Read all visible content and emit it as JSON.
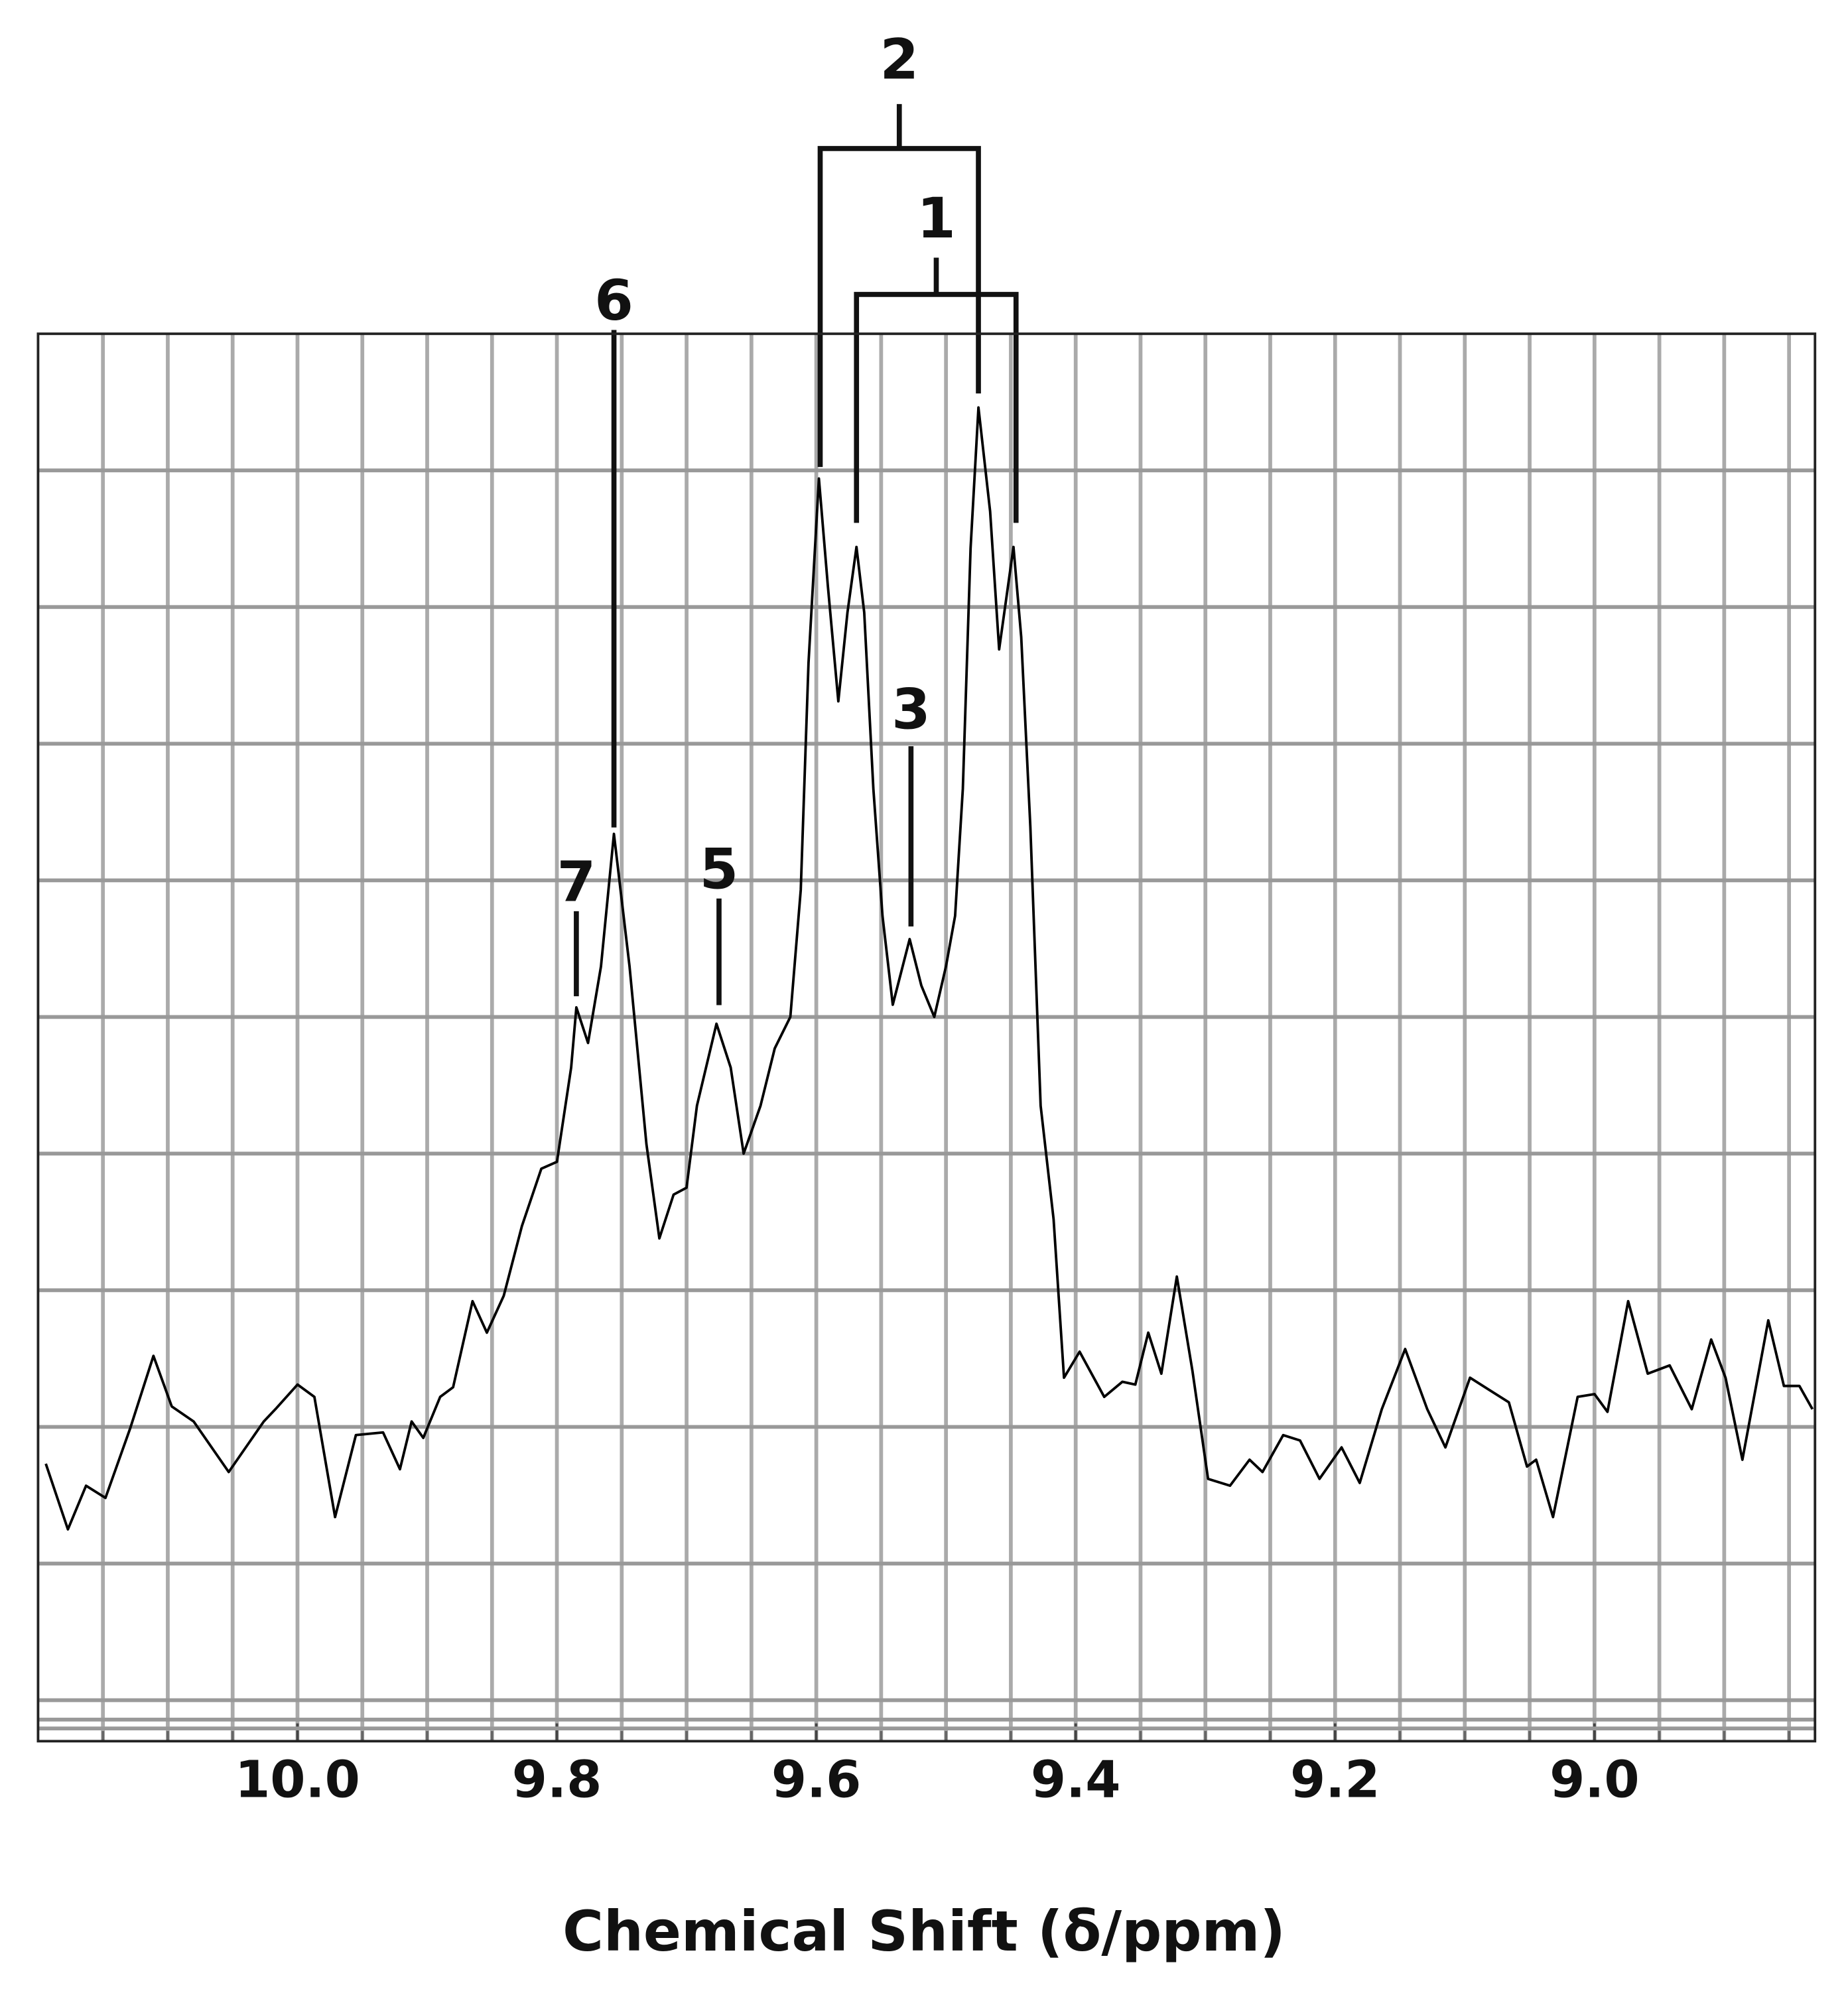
{
  "chart_data": {
    "type": "line",
    "xlabel": "Chemical Shift (δ/ppm)",
    "xlim": [
      10.2,
      8.83
    ],
    "xticks": [
      {
        "value": 10,
        "label": "10.0"
      },
      9.8,
      9.6,
      9.4,
      9.2,
      {
        "value": 9,
        "label": "9.0"
      }
    ],
    "xgrid": [
      10.15,
      10.1,
      10.05,
      10.0,
      9.95,
      9.9,
      9.85,
      9.8,
      9.75,
      9.7,
      9.65,
      9.6,
      9.55,
      9.5,
      9.45,
      9.4,
      9.35,
      9.3,
      9.25,
      9.2,
      9.15,
      9.1,
      9.05,
      9.0,
      8.95,
      8.9,
      8.85
    ],
    "ylim": [
      -3,
      100
    ],
    "yticks": [
      0,
      10,
      20,
      30,
      40,
      50,
      60,
      70,
      80,
      90
    ],
    "grid": true,
    "color": "#000000",
    "x": [
      10.194,
      10.177,
      10.163,
      10.148,
      10.129,
      10.111,
      10.097,
      10.08,
      10.053,
      10.026,
      10.017,
      10.0,
      9.987,
      9.971,
      9.955,
      9.934,
      9.921,
      9.912,
      9.903,
      9.89,
      9.88,
      9.865,
      9.854,
      9.841,
      9.827,
      9.812,
      9.8,
      9.789,
      9.785,
      9.776,
      9.766,
      9.756,
      9.744,
      9.731,
      9.721,
      9.71,
      9.7,
      9.692,
      9.677,
      9.666,
      9.656,
      9.643,
      9.632,
      9.62,
      9.612,
      9.606,
      9.598,
      9.591,
      9.583,
      9.576,
      9.569,
      9.563,
      9.556,
      9.549,
      9.541,
      9.528,
      9.519,
      9.509,
      9.5,
      9.493,
      9.487,
      9.481,
      9.475,
      9.466,
      9.459,
      9.448,
      9.442,
      9.435,
      9.427,
      9.417,
      9.409,
      9.397,
      9.378,
      9.364,
      9.354,
      9.344,
      9.334,
      9.322,
      9.31,
      9.298,
      9.281,
      9.266,
      9.256,
      9.24,
      9.227,
      9.212,
      9.195,
      9.181,
      9.164,
      9.146,
      9.129,
      9.115,
      9.096,
      9.081,
      9.066,
      9.052,
      9.045,
      9.032,
      9.013,
      9.0,
      8.99,
      8.974,
      8.959,
      8.942,
      8.925,
      8.91,
      8.899,
      8.886,
      8.866,
      8.854,
      8.842,
      8.832
    ],
    "values": [
      17.3,
      12.5,
      15.7,
      14.8,
      19.9,
      25.2,
      21.5,
      20.4,
      16.7,
      20.4,
      21.3,
      23.1,
      22.2,
      13.4,
      19.4,
      19.6,
      16.9,
      20.4,
      19.2,
      22.2,
      22.9,
      29.2,
      26.9,
      29.6,
      34.7,
      38.9,
      39.4,
      46.3,
      50.7,
      48.1,
      53.7,
      63.4,
      53.7,
      40.7,
      33.8,
      37.0,
      37.5,
      43.5,
      49.5,
      46.3,
      40.0,
      43.5,
      47.7,
      50.0,
      59.3,
      75.9,
      89.4,
      81.5,
      73.1,
      79.6,
      84.4,
      79.6,
      66.7,
      57.4,
      50.9,
      55.7,
      52.3,
      50.0,
      53.7,
      57.4,
      66.7,
      84.3,
      94.6,
      87.0,
      76.9,
      84.4,
      77.8,
      63.9,
      43.5,
      35.2,
      23.6,
      25.5,
      22.2,
      23.3,
      23.1,
      26.9,
      23.9,
      31.0,
      24.1,
      16.2,
      15.7,
      17.6,
      16.7,
      19.4,
      19.0,
      16.2,
      18.5,
      15.9,
      21.3,
      25.7,
      21.3,
      18.5,
      23.6,
      22.7,
      21.8,
      17.1,
      17.6,
      13.4,
      22.2,
      22.4,
      21.1,
      29.2,
      23.9,
      24.5,
      21.3,
      26.4,
      23.6,
      17.6,
      27.8,
      23.0,
      23.0,
      21.3
    ],
    "annotations": [
      {
        "text": "2",
        "x": [
          9.597,
          9.475
        ]
      },
      {
        "text": "1",
        "x": [
          9.569,
          9.446
        ]
      },
      {
        "text": "6",
        "x": 9.756
      },
      {
        "text": "7",
        "x": 9.785
      },
      {
        "text": "5",
        "x": 9.675
      },
      {
        "text": "3",
        "x": 9.527
      }
    ]
  }
}
